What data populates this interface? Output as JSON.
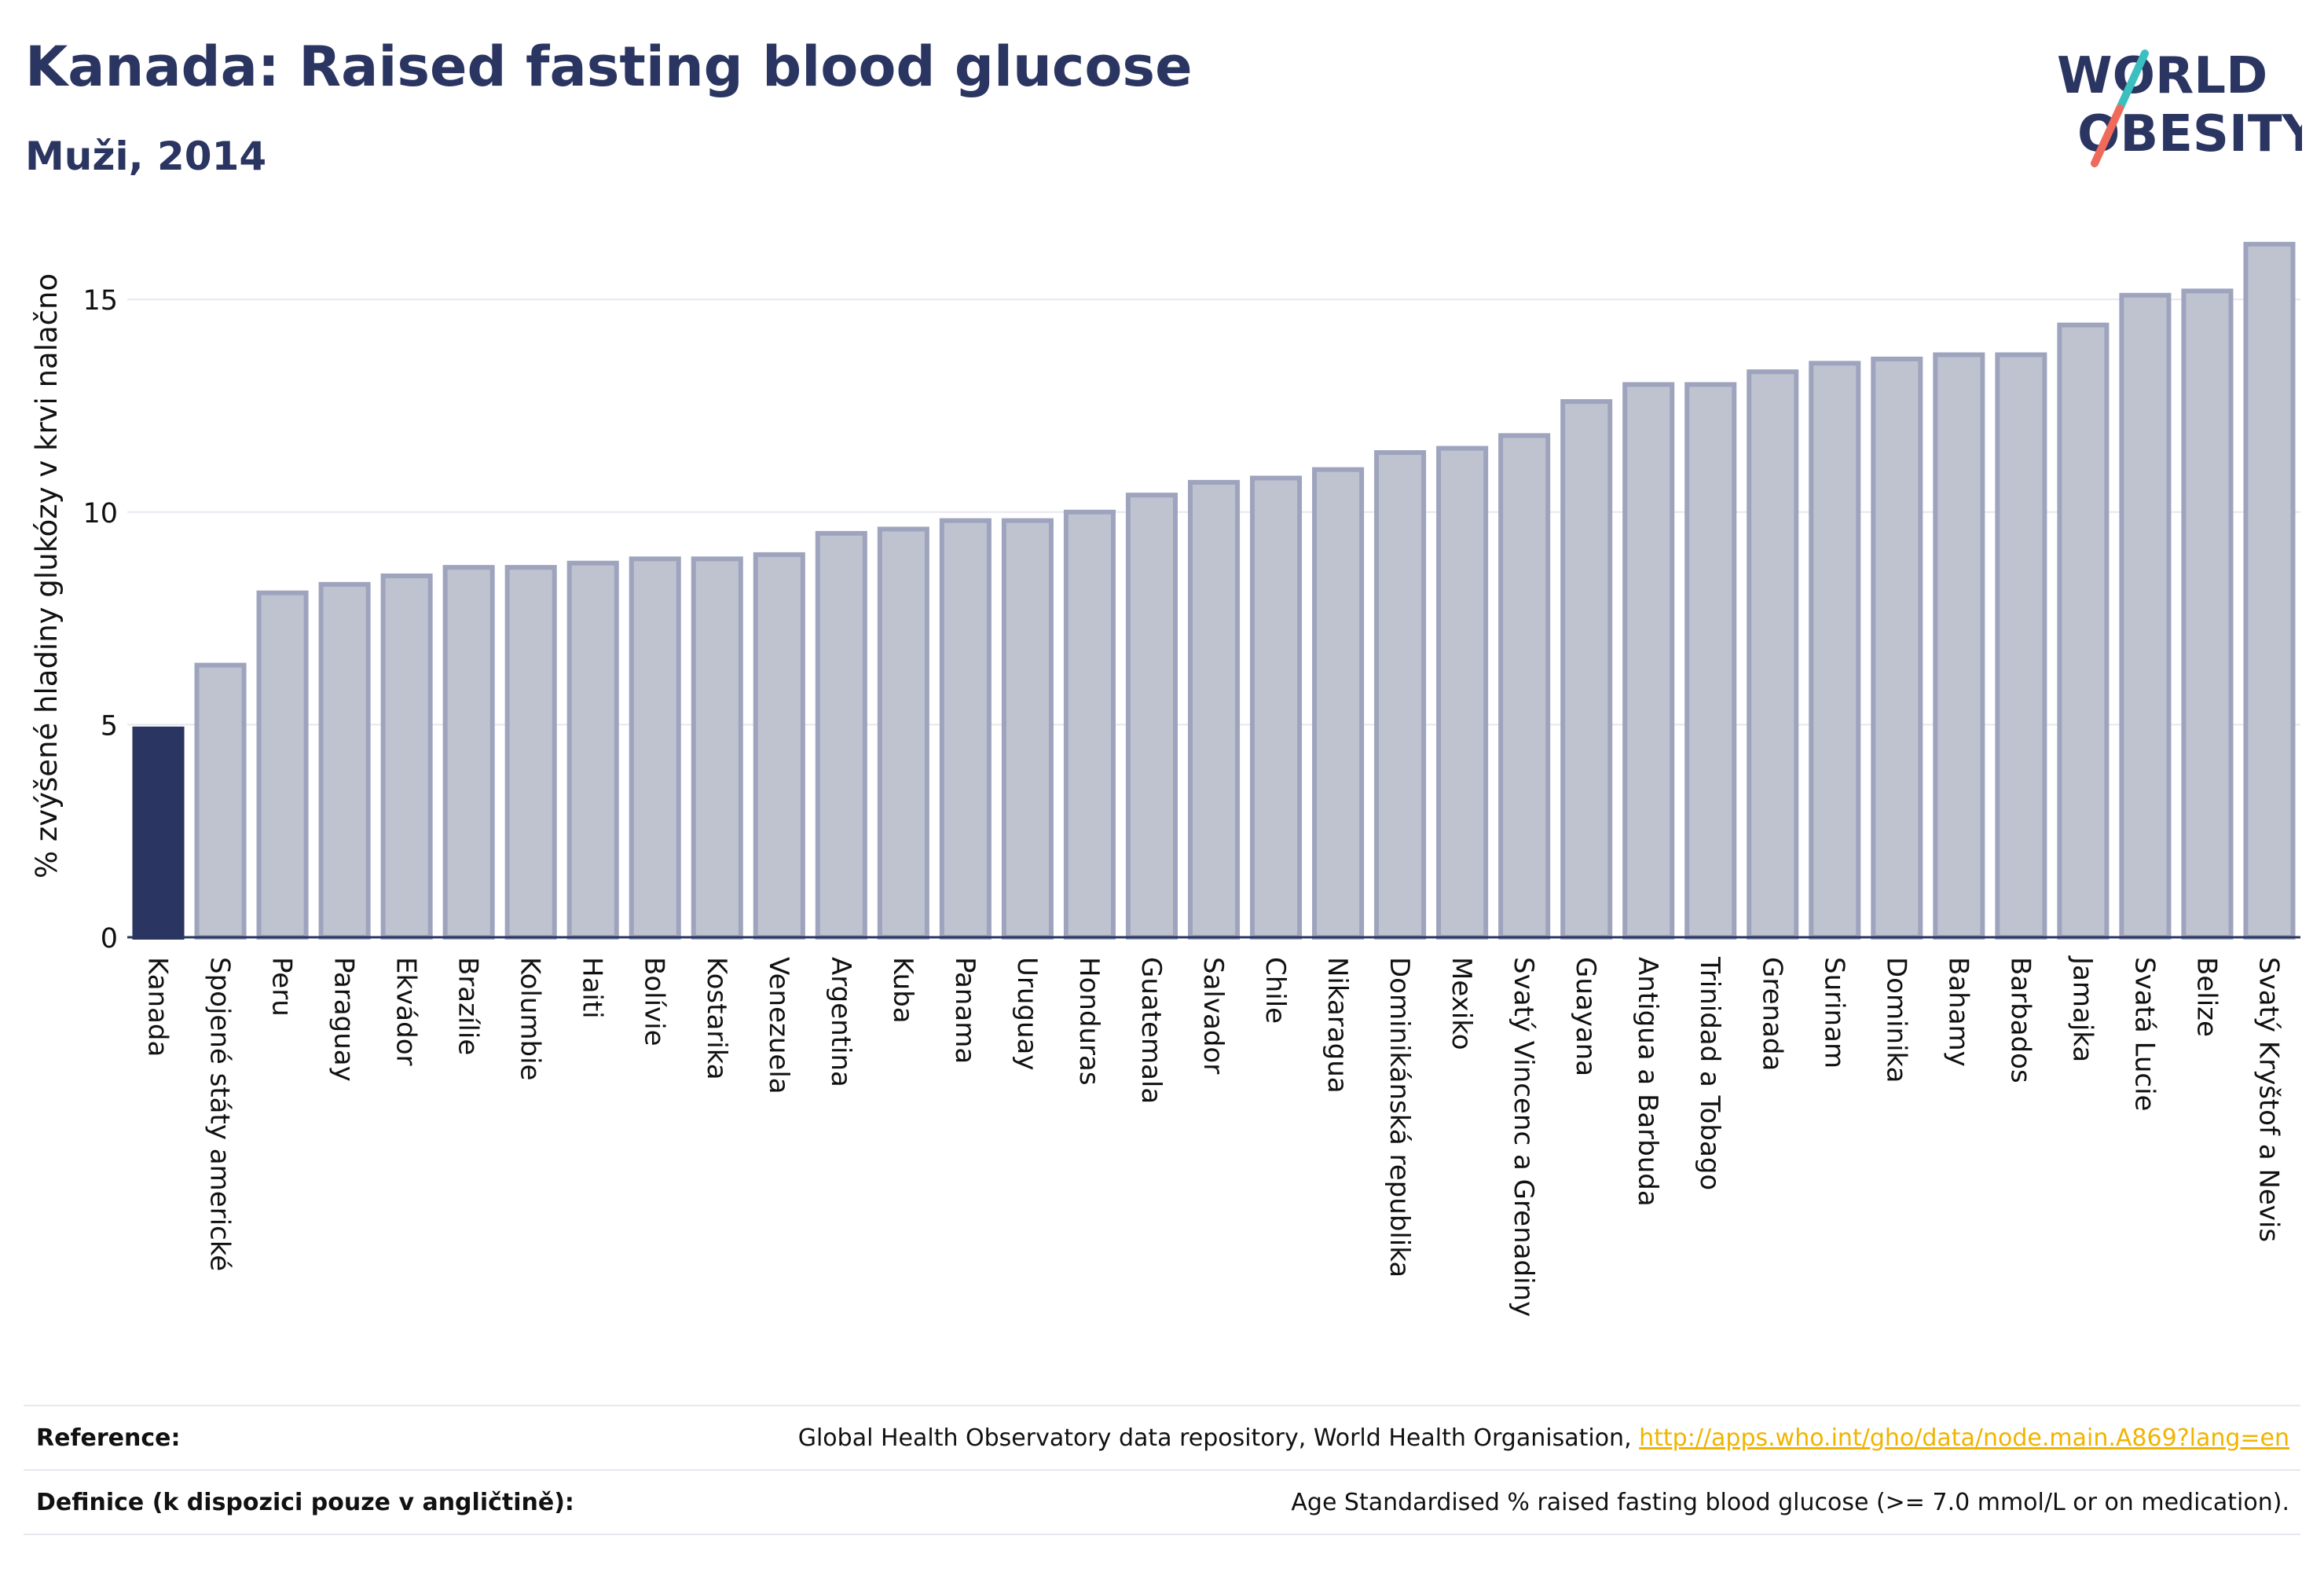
{
  "header": {
    "title": "Kanada: Raised fasting blood glucose",
    "subtitle": "Muži, 2014"
  },
  "logo": {
    "line1": "WORLD",
    "line2": "OBESITY",
    "icon": "world-obesity-logo"
  },
  "colors": {
    "highlight": "#2b3561",
    "bar_fill": "#bfc3d0",
    "bar_stroke": "#9ea4bd",
    "grid": "#e6e8ef",
    "link": "#f0b400"
  },
  "chart_data": {
    "type": "bar",
    "ylabel": "% zvýšené hladiny glukózy v krvi nalačno",
    "xlabel": "",
    "ylim": [
      0,
      16.5
    ],
    "yticks": [
      0,
      5,
      10,
      15
    ],
    "grid": true,
    "highlight_category": "Kanada",
    "categories": [
      "Kanada",
      "Spojené státy americké",
      "Peru",
      "Paraguay",
      "Ekvádor",
      "Brazílie",
      "Kolumbie",
      "Haiti",
      "Bolívie",
      "Kostarika",
      "Venezuela",
      "Argentina",
      "Kuba",
      "Panama",
      "Uruguay",
      "Honduras",
      "Guatemala",
      "Salvador",
      "Chile",
      "Nikaragua",
      "Dominikánská republika",
      "Mexiko",
      "Svatý Vincenc a Grenadiny",
      "Guayana",
      "Antigua a Barbuda",
      "Trinidad a Tobago",
      "Grenada",
      "Surinam",
      "Dominika",
      "Bahamy",
      "Barbados",
      "Jamajka",
      "Svatá Lucie",
      "Belize",
      "Svatý Kryštof a Nevis"
    ],
    "values": [
      4.9,
      6.4,
      8.1,
      8.3,
      8.5,
      8.7,
      8.7,
      8.8,
      8.9,
      8.9,
      9.0,
      9.5,
      9.6,
      9.8,
      9.8,
      10.0,
      10.4,
      10.7,
      10.8,
      11.0,
      11.4,
      11.5,
      11.8,
      12.6,
      13.0,
      13.0,
      13.3,
      13.5,
      13.6,
      13.7,
      13.7,
      14.4,
      15.1,
      15.2,
      16.3
    ]
  },
  "references": [
    {
      "label": "Reference:",
      "value": "Global Health Observatory data repository, World Health Organisation, ",
      "link": "http://apps.who.int/gho/data/node.main.A869?lang=en"
    },
    {
      "label": "Definice (k dispozici pouze v angličtině):",
      "value": "Age Standardised % raised fasting blood glucose (>= 7.0 mmol/L or on medication).",
      "link": ""
    }
  ]
}
